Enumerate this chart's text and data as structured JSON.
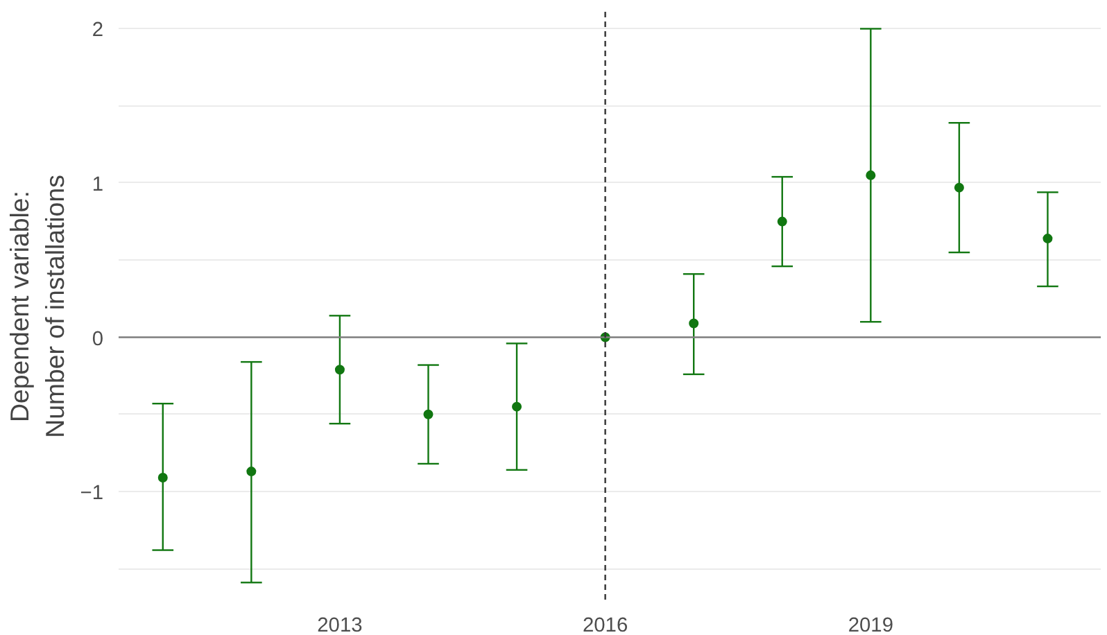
{
  "chart_data": {
    "type": "scatter",
    "ylabel": "Dependent variable:\nNumber of installations",
    "x": [
      2011,
      2012,
      2013,
      2014,
      2015,
      2016,
      2017,
      2018,
      2019,
      2020,
      2021
    ],
    "series": [
      {
        "color": "#117711",
        "values": [
          -0.91,
          -0.87,
          -0.21,
          -0.5,
          -0.45,
          0,
          0.09,
          0.75,
          1.05,
          0.97,
          0.64
        ],
        "errors": [
          [
            -1.38,
            -0.43
          ],
          [
            -1.59,
            -0.16
          ],
          [
            -0.56,
            0.14
          ],
          [
            -0.82,
            -0.18
          ],
          [
            -0.86,
            -0.04
          ],
          null,
          [
            -0.24,
            0.41
          ],
          [
            0.46,
            1.04
          ],
          [
            0.1,
            2.0
          ],
          [
            0.55,
            1.39
          ],
          [
            0.33,
            0.94
          ]
        ]
      }
    ],
    "xlim": [
      2010.5,
      2021.6
    ],
    "ylim": [
      -1.71,
      2.11
    ],
    "xticks": [
      2013,
      2016,
      2019
    ],
    "yticks": [
      {
        "value": -1.5,
        "label": null
      },
      {
        "value": -1,
        "label": "−1"
      },
      {
        "value": -0.5,
        "label": null
      },
      0,
      {
        "value": 0.5,
        "label": null
      },
      1,
      {
        "value": 1.5,
        "label": null
      },
      2
    ],
    "grid": "y",
    "marker": "circle",
    "ref_lines": [
      {
        "axis": "y",
        "value": 0,
        "color": "#7f7f7f",
        "line_style": "solid"
      },
      {
        "axis": "x",
        "value": 2016,
        "color": "#333333",
        "line_style": "dashed"
      }
    ]
  }
}
